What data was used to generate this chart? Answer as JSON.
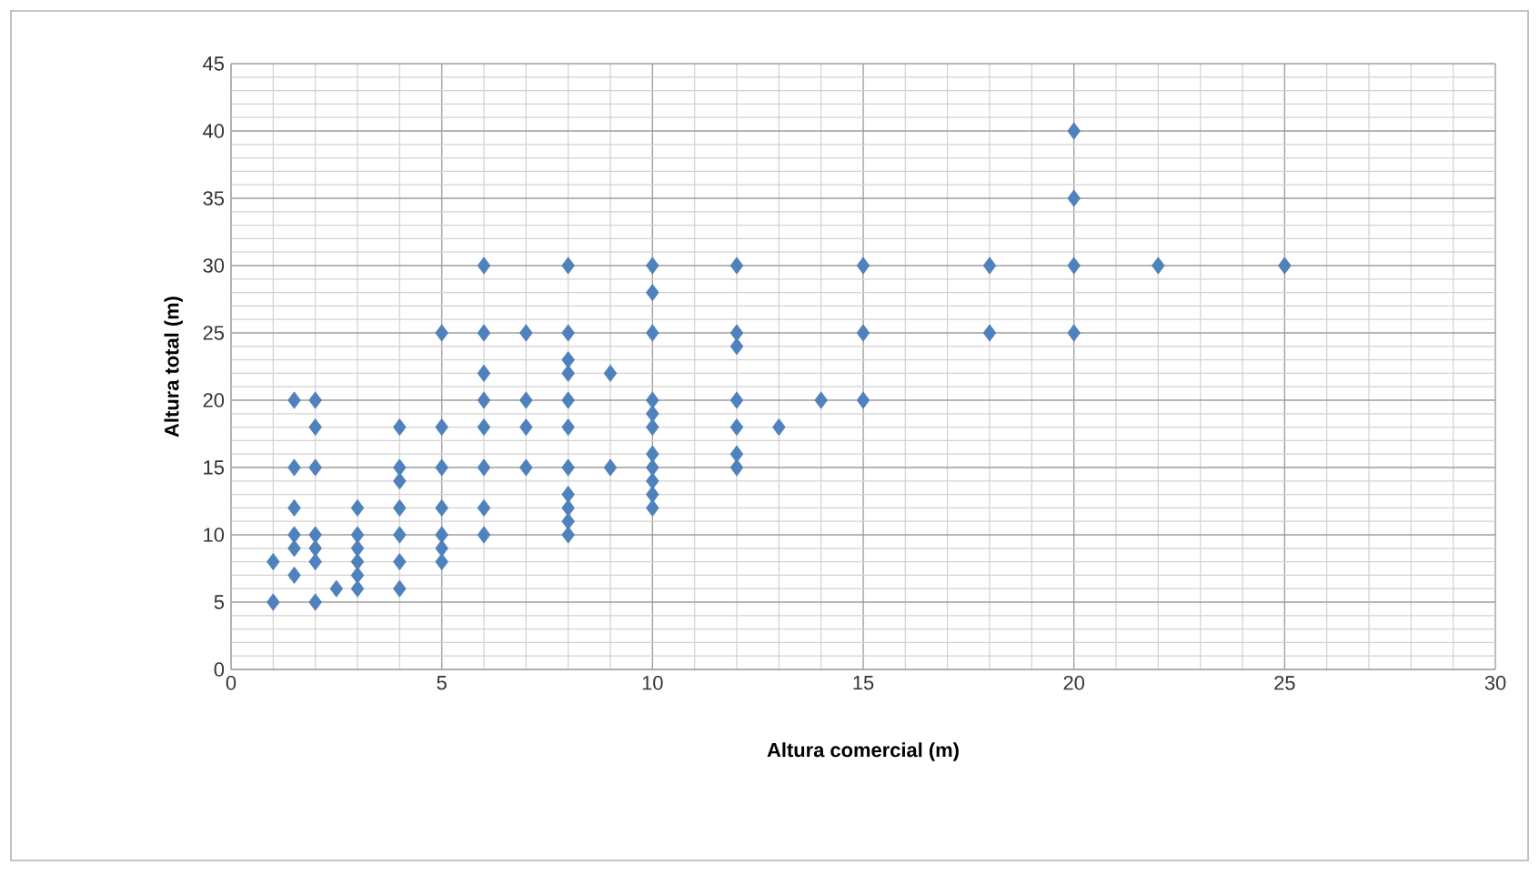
{
  "chart_data": {
    "type": "scatter",
    "xlabel": "Altura comercial (m)",
    "ylabel": "Altura total (m)",
    "xlim": [
      0,
      30
    ],
    "ylim": [
      0,
      45
    ],
    "xticks": [
      0,
      5,
      10,
      15,
      20,
      25,
      30
    ],
    "yticks": [
      0,
      5,
      10,
      15,
      20,
      25,
      30,
      35,
      40,
      45
    ],
    "grid": true,
    "marker": "diamond",
    "series": [
      {
        "color": "#4f81bd",
        "x": [
          1,
          1,
          1.5,
          1.5,
          1.5,
          1.5,
          1.5,
          1.5,
          2,
          2,
          2,
          2,
          2,
          2,
          2,
          2.5,
          3,
          3,
          3,
          3,
          3,
          3,
          4,
          4,
          4,
          4,
          4,
          4,
          4,
          5,
          5,
          5,
          5,
          5,
          5,
          5,
          6,
          6,
          6,
          6,
          6,
          6,
          6,
          6,
          7,
          7,
          7,
          7,
          8,
          8,
          8,
          8,
          8,
          8,
          8,
          8,
          8,
          8,
          8,
          9,
          9,
          10,
          10,
          10,
          10,
          10,
          10,
          10,
          10,
          10,
          10,
          10,
          12,
          12,
          12,
          12,
          12,
          12,
          12,
          13,
          14,
          15,
          15,
          15,
          18,
          18,
          20,
          20,
          20,
          20,
          22,
          25
        ],
        "values": [
          5,
          8,
          7,
          9,
          10,
          12,
          15,
          20,
          5,
          8,
          9,
          10,
          15,
          18,
          20,
          6,
          6,
          7,
          8,
          9,
          10,
          12,
          6,
          8,
          10,
          12,
          14,
          15,
          18,
          8,
          9,
          10,
          12,
          15,
          18,
          25,
          10,
          12,
          15,
          18,
          20,
          22,
          25,
          30,
          15,
          18,
          20,
          25,
          10,
          11,
          12,
          13,
          15,
          18,
          20,
          22,
          23,
          25,
          30,
          15,
          22,
          12,
          13,
          14,
          15,
          16,
          18,
          19,
          20,
          25,
          28,
          30,
          15,
          16,
          18,
          20,
          24,
          25,
          30,
          18,
          20,
          20,
          25,
          30,
          25,
          30,
          25,
          30,
          35,
          40,
          30,
          30
        ]
      }
    ]
  }
}
